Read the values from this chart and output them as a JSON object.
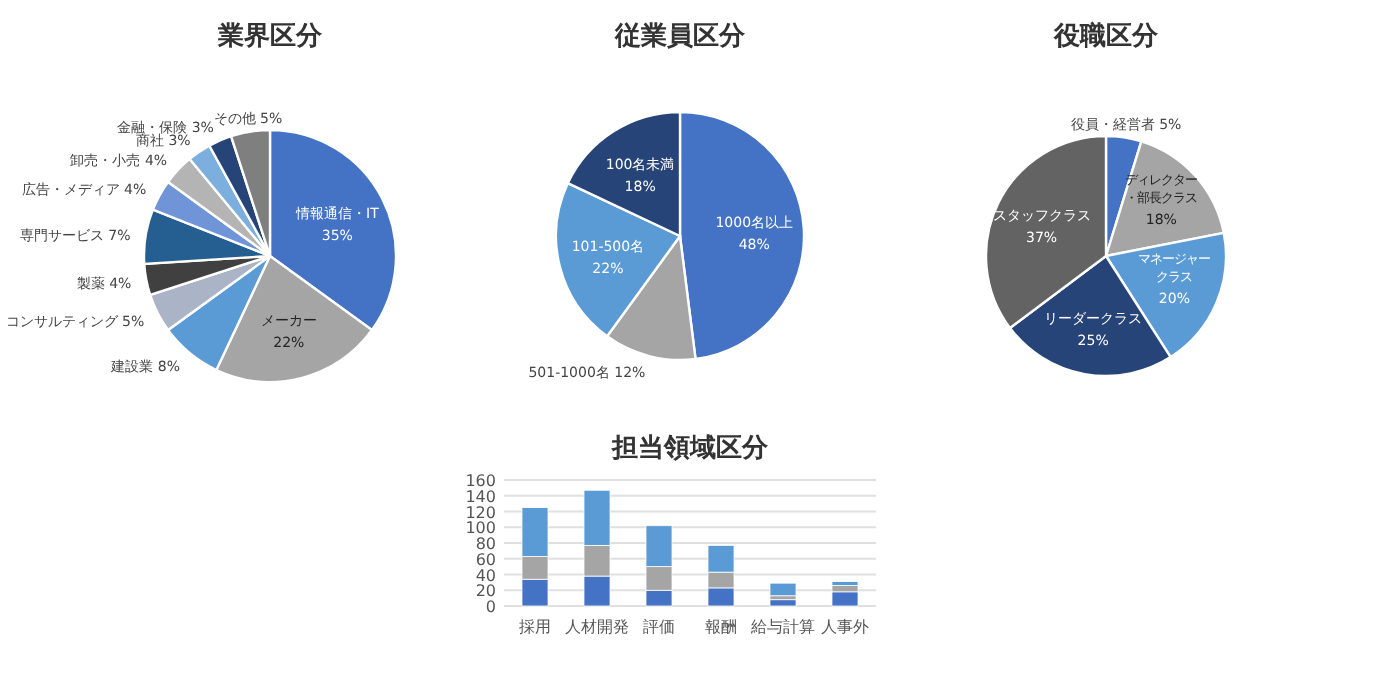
{
  "chart_data": [
    {
      "type": "pie",
      "title": "業界区分",
      "categories": [
        "情報通信・IT",
        "メーカー",
        "建設業",
        "コンサルティング",
        "製薬",
        "専門サービス",
        "広告・メディア",
        "卸売・小売",
        "商社",
        "金融・保険",
        "その他"
      ],
      "values": [
        35,
        22,
        8,
        5,
        4,
        7,
        4,
        4,
        3,
        3,
        5
      ],
      "value_labels": [
        "35%",
        "22%",
        "8%",
        "5%",
        "4%",
        "7%",
        "4%",
        "4%",
        "3%",
        "3%",
        "5%"
      ],
      "colors": [
        "#4472c4",
        "#a5a5a5",
        "#5b9bd5",
        "#aab4c6",
        "#404040",
        "#255e91",
        "#6f94d8",
        "#b4b4b4",
        "#7cafdd",
        "#264478",
        "#7f7f7f"
      ]
    },
    {
      "type": "pie",
      "title": "従業員区分",
      "categories": [
        "1000名以上",
        "501-1000名",
        "101-500名",
        "100名未満"
      ],
      "values": [
        48,
        12,
        22,
        18
      ],
      "value_labels": [
        "48%",
        "12%",
        "22%",
        "18%"
      ],
      "colors": [
        "#4472c4",
        "#a5a5a5",
        "#5b9bd5",
        "#264478"
      ]
    },
    {
      "type": "pie",
      "title": "役職区分",
      "categories": [
        "役員・経営者",
        "ディレクター・部長クラス",
        "マネージャークラス",
        "リーダークラス",
        "スタッフクラス"
      ],
      "values": [
        5,
        18,
        20,
        25,
        37
      ],
      "value_labels": [
        "5%",
        "18%",
        "20%",
        "25%",
        "37%"
      ],
      "colors": [
        "#4472c4",
        "#a5a5a5",
        "#5b9bd5",
        "#264478",
        "#636363"
      ]
    },
    {
      "type": "bar",
      "title": "担当領域区分",
      "stacked": true,
      "categories": [
        "採用",
        "人材開発",
        "評価",
        "報酬",
        "給与計算",
        "人事外"
      ],
      "series": [
        {
          "color": "#4472c4",
          "values": [
            34,
            38,
            20,
            23,
            8,
            18
          ]
        },
        {
          "color": "#a5a5a5",
          "values": [
            29,
            39,
            30,
            20,
            5,
            8
          ]
        },
        {
          "color": "#5b9bd5",
          "values": [
            62,
            70,
            52,
            34,
            16,
            5
          ]
        }
      ],
      "ylim": [
        0,
        160
      ],
      "yticks": [
        0,
        20,
        40,
        60,
        80,
        100,
        120,
        140,
        160
      ],
      "grid": "y"
    }
  ]
}
